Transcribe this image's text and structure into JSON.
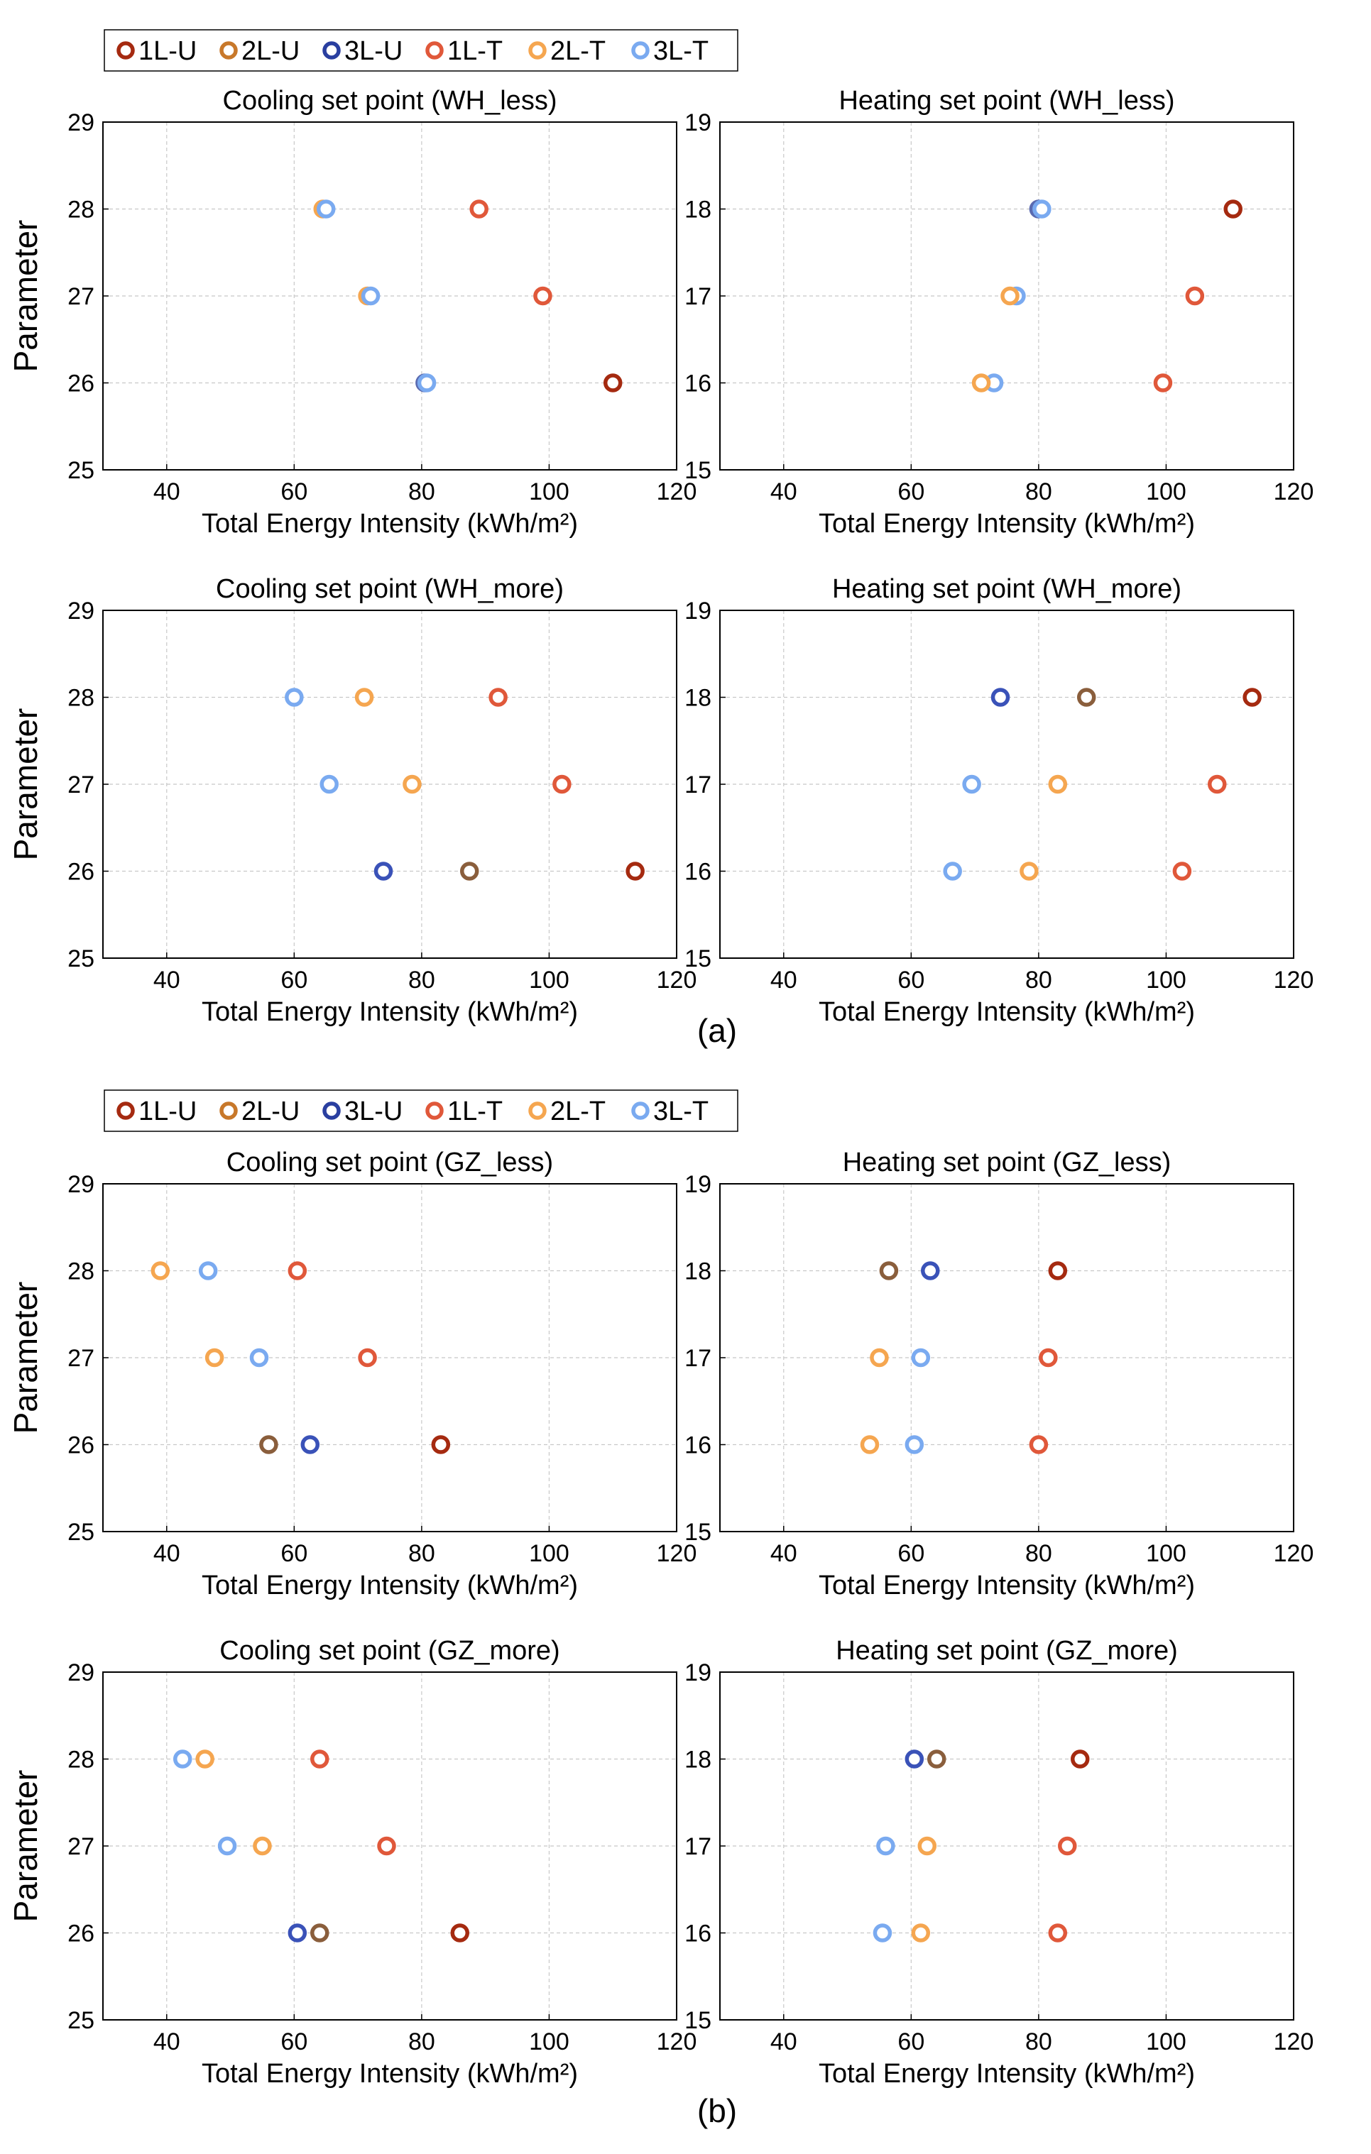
{
  "marker_colors": {
    "1L-U": "#a52a10",
    "2L-U": "#c8782a",
    "3L-U": "#2a3fa0",
    "1L-T": "#e0583a",
    "2L-T": "#f5a650",
    "3L-T": "#7aaaf0"
  },
  "panel_labels": [
    "(a)",
    "(b)"
  ],
  "legends": [
    [
      "1L-U",
      "2L-U",
      "3L-U",
      "1L-T",
      "2L-T",
      "3L-T"
    ],
    [
      "1L-U",
      "2L-U",
      "3L-U",
      "1L-T",
      "2L-T",
      "3L-T"
    ]
  ],
  "chart_data": [
    {
      "type": "scatter",
      "title": "Cooling set point (WH_less)",
      "xlabel": "Total Energy Intensity (kWh/m²)",
      "ylabel": "Parameter",
      "xlim": [
        30,
        120
      ],
      "ylim": [
        25,
        29
      ],
      "xticks": [
        40,
        60,
        80,
        100,
        120
      ],
      "yticks": [
        25,
        26,
        27,
        28,
        29
      ],
      "grid": true,
      "series": [
        {
          "name": "1L-U",
          "color": "#a52a10",
          "points": [
            [
              110,
              26
            ]
          ]
        },
        {
          "name": "1L-T",
          "color": "#e0583a",
          "points": [
            [
              89,
              28
            ],
            [
              99,
              27
            ]
          ]
        },
        {
          "name": "3L-U",
          "color": "#5a6ab0",
          "points": [
            [
              80.5,
              26
            ]
          ]
        },
        {
          "name": "2L-T",
          "color": "#f5a650",
          "points": [
            [
              64.5,
              28
            ],
            [
              71.5,
              27
            ]
          ]
        },
        {
          "name": "3L-T",
          "color": "#7aaaf0",
          "points": [
            [
              65,
              28
            ],
            [
              72,
              27
            ],
            [
              80.8,
              26
            ]
          ]
        }
      ]
    },
    {
      "type": "scatter",
      "title": "Heating set point (WH_less)",
      "xlabel": "Total Energy Intensity (kWh/m²)",
      "ylabel": "",
      "xlim": [
        30,
        120
      ],
      "ylim": [
        15,
        19
      ],
      "xticks": [
        40,
        60,
        80,
        100,
        120
      ],
      "yticks": [
        15,
        16,
        17,
        18,
        19
      ],
      "grid": true,
      "series": [
        {
          "name": "1L-U",
          "color": "#a52a10",
          "points": [
            [
              110.5,
              18
            ]
          ]
        },
        {
          "name": "1L-T",
          "color": "#e0583a",
          "points": [
            [
              104.5,
              17
            ],
            [
              99.5,
              16
            ]
          ]
        },
        {
          "name": "3L-U",
          "color": "#5a6ab0",
          "points": [
            [
              80,
              18
            ]
          ]
        },
        {
          "name": "3L-T",
          "color": "#7aaaf0",
          "points": [
            [
              80.5,
              18
            ],
            [
              76.5,
              17
            ],
            [
              73,
              16
            ]
          ]
        },
        {
          "name": "2L-T",
          "color": "#f5a650",
          "points": [
            [
              75.5,
              17
            ],
            [
              71,
              16
            ]
          ]
        }
      ]
    },
    {
      "type": "scatter",
      "title": "Cooling set point (WH_more)",
      "xlabel": "Total Energy Intensity (kWh/m²)",
      "ylabel": "Parameter",
      "xlim": [
        30,
        120
      ],
      "ylim": [
        25,
        29
      ],
      "xticks": [
        40,
        60,
        80,
        100,
        120
      ],
      "yticks": [
        25,
        26,
        27,
        28,
        29
      ],
      "grid": true,
      "series": [
        {
          "name": "1L-U",
          "color": "#a52a10",
          "points": [
            [
              113.5,
              26
            ]
          ]
        },
        {
          "name": "1L-T",
          "color": "#e0583a",
          "points": [
            [
              92,
              28
            ],
            [
              102,
              27
            ]
          ]
        },
        {
          "name": "2L-U",
          "color": "#8a5e3c",
          "points": [
            [
              87.5,
              26
            ]
          ]
        },
        {
          "name": "3L-U",
          "color": "#3a52b8",
          "points": [
            [
              74,
              26
            ]
          ]
        },
        {
          "name": "2L-T",
          "color": "#f5a650",
          "points": [
            [
              71,
              28
            ],
            [
              78.5,
              27
            ]
          ]
        },
        {
          "name": "3L-T",
          "color": "#7aaaf0",
          "points": [
            [
              60,
              28
            ],
            [
              65.5,
              27
            ]
          ]
        }
      ]
    },
    {
      "type": "scatter",
      "title": "Heating set point (WH_more)",
      "xlabel": "Total Energy Intensity (kWh/m²)",
      "ylabel": "",
      "xlim": [
        30,
        120
      ],
      "ylim": [
        15,
        19
      ],
      "xticks": [
        40,
        60,
        80,
        100,
        120
      ],
      "yticks": [
        15,
        16,
        17,
        18,
        19
      ],
      "grid": true,
      "series": [
        {
          "name": "1L-U",
          "color": "#a52a10",
          "points": [
            [
              113.5,
              18
            ]
          ]
        },
        {
          "name": "1L-T",
          "color": "#e0583a",
          "points": [
            [
              108,
              17
            ],
            [
              102.5,
              16
            ]
          ]
        },
        {
          "name": "2L-U",
          "color": "#8a5e3c",
          "points": [
            [
              87.5,
              18
            ]
          ]
        },
        {
          "name": "3L-U",
          "color": "#3a52b8",
          "points": [
            [
              74,
              18
            ]
          ]
        },
        {
          "name": "2L-T",
          "color": "#f5a650",
          "points": [
            [
              83,
              17
            ],
            [
              78.5,
              16
            ]
          ]
        },
        {
          "name": "3L-T",
          "color": "#7aaaf0",
          "points": [
            [
              69.5,
              17
            ],
            [
              66.5,
              16
            ]
          ]
        }
      ]
    },
    {
      "type": "scatter",
      "title": "Cooling set point (GZ_less)",
      "xlabel": "Total Energy Intensity (kWh/m²)",
      "ylabel": "Parameter",
      "xlim": [
        30,
        120
      ],
      "ylim": [
        25,
        29
      ],
      "xticks": [
        40,
        60,
        80,
        100,
        120
      ],
      "yticks": [
        25,
        26,
        27,
        28,
        29
      ],
      "grid": true,
      "series": [
        {
          "name": "1L-U",
          "color": "#a52a10",
          "points": [
            [
              83,
              26
            ]
          ]
        },
        {
          "name": "1L-T",
          "color": "#e0583a",
          "points": [
            [
              60.5,
              28
            ],
            [
              71.5,
              27
            ]
          ]
        },
        {
          "name": "2L-U",
          "color": "#8a5e3c",
          "points": [
            [
              56,
              26
            ]
          ]
        },
        {
          "name": "3L-U",
          "color": "#3a52b8",
          "points": [
            [
              62.5,
              26
            ]
          ]
        },
        {
          "name": "2L-T",
          "color": "#f5a650",
          "points": [
            [
              39,
              28
            ],
            [
              47.5,
              27
            ]
          ]
        },
        {
          "name": "3L-T",
          "color": "#7aaaf0",
          "points": [
            [
              46.5,
              28
            ],
            [
              54.5,
              27
            ]
          ]
        }
      ]
    },
    {
      "type": "scatter",
      "title": "Heating set point (GZ_less)",
      "xlabel": "Total Energy Intensity (kWh/m²)",
      "ylabel": "",
      "xlim": [
        30,
        120
      ],
      "ylim": [
        15,
        19
      ],
      "xticks": [
        40,
        60,
        80,
        100,
        120
      ],
      "yticks": [
        15,
        16,
        17,
        18,
        19
      ],
      "grid": true,
      "series": [
        {
          "name": "1L-U",
          "color": "#a52a10",
          "points": [
            [
              83,
              18
            ]
          ]
        },
        {
          "name": "1L-T",
          "color": "#e0583a",
          "points": [
            [
              81.5,
              17
            ],
            [
              80,
              16
            ]
          ]
        },
        {
          "name": "2L-U",
          "color": "#8a5e3c",
          "points": [
            [
              56.5,
              18
            ]
          ]
        },
        {
          "name": "3L-U",
          "color": "#3a52b8",
          "points": [
            [
              63,
              18
            ]
          ]
        },
        {
          "name": "2L-T",
          "color": "#f5a650",
          "points": [
            [
              55,
              17
            ],
            [
              53.5,
              16
            ]
          ]
        },
        {
          "name": "3L-T",
          "color": "#7aaaf0",
          "points": [
            [
              61.5,
              17
            ],
            [
              60.5,
              16
            ]
          ]
        }
      ]
    },
    {
      "type": "scatter",
      "title": "Cooling set point (GZ_more)",
      "xlabel": "Total Energy Intensity (kWh/m²)",
      "ylabel": "Parameter",
      "xlim": [
        30,
        120
      ],
      "ylim": [
        25,
        29
      ],
      "xticks": [
        40,
        60,
        80,
        100,
        120
      ],
      "yticks": [
        25,
        26,
        27,
        28,
        29
      ],
      "grid": true,
      "series": [
        {
          "name": "1L-U",
          "color": "#a52a10",
          "points": [
            [
              86,
              26
            ]
          ]
        },
        {
          "name": "1L-T",
          "color": "#e0583a",
          "points": [
            [
              64,
              28
            ],
            [
              74.5,
              27
            ]
          ]
        },
        {
          "name": "2L-U",
          "color": "#8a5e3c",
          "points": [
            [
              64,
              26
            ]
          ]
        },
        {
          "name": "3L-U",
          "color": "#3a52b8",
          "points": [
            [
              60.5,
              26
            ]
          ]
        },
        {
          "name": "2L-T",
          "color": "#f5a650",
          "points": [
            [
              46,
              28
            ],
            [
              55,
              27
            ]
          ]
        },
        {
          "name": "3L-T",
          "color": "#7aaaf0",
          "points": [
            [
              42.5,
              28
            ],
            [
              49.5,
              27
            ]
          ]
        }
      ]
    },
    {
      "type": "scatter",
      "title": "Heating set point (GZ_more)",
      "xlabel": "Total Energy Intensity (kWh/m²)",
      "ylabel": "",
      "xlim": [
        30,
        120
      ],
      "ylim": [
        15,
        19
      ],
      "xticks": [
        40,
        60,
        80,
        100,
        120
      ],
      "yticks": [
        15,
        16,
        17,
        18,
        19
      ],
      "grid": true,
      "series": [
        {
          "name": "1L-U",
          "color": "#a52a10",
          "points": [
            [
              86.5,
              18
            ]
          ]
        },
        {
          "name": "1L-T",
          "color": "#e0583a",
          "points": [
            [
              84.5,
              17
            ],
            [
              83,
              16
            ]
          ]
        },
        {
          "name": "2L-U",
          "color": "#8a5e3c",
          "points": [
            [
              64,
              18
            ]
          ]
        },
        {
          "name": "3L-U",
          "color": "#3a52b8",
          "points": [
            [
              60.5,
              18
            ]
          ]
        },
        {
          "name": "2L-T",
          "color": "#f5a650",
          "points": [
            [
              62.5,
              17
            ],
            [
              61.5,
              16
            ]
          ]
        },
        {
          "name": "3L-T",
          "color": "#7aaaf0",
          "points": [
            [
              56,
              17
            ],
            [
              55.5,
              16
            ]
          ]
        }
      ]
    }
  ]
}
